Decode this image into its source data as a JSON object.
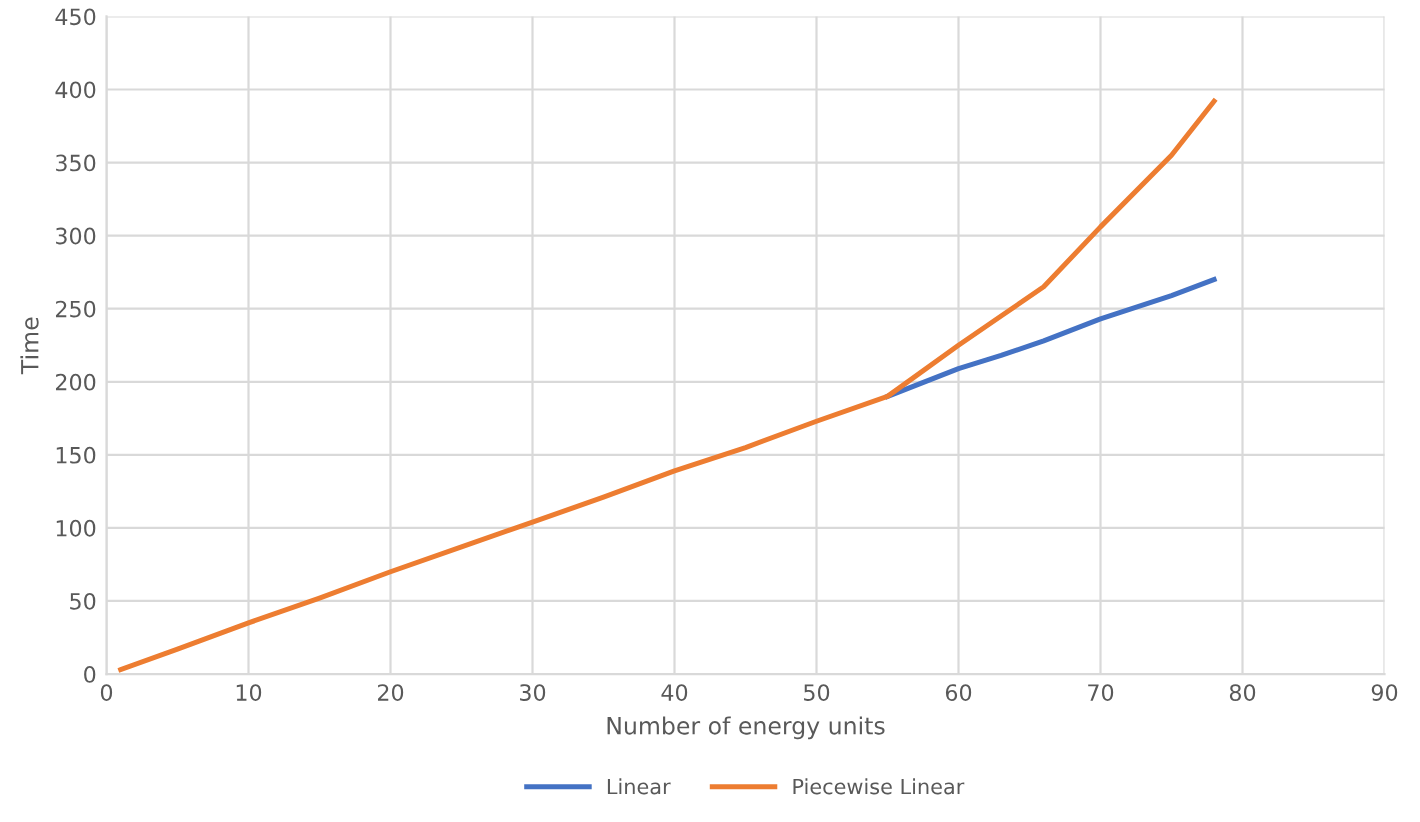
{
  "chart_data": {
    "type": "line",
    "xlabel": "Number of energy units",
    "ylabel": "Time",
    "x": [
      1,
      5,
      10,
      15,
      20,
      25,
      30,
      35,
      40,
      45,
      50,
      55,
      60,
      63,
      66,
      70,
      75,
      78
    ],
    "series": [
      {
        "name": "Linear",
        "color": "#4472c4",
        "values": [
          null,
          null,
          null,
          null,
          null,
          null,
          null,
          null,
          null,
          null,
          null,
          190,
          209,
          218,
          228,
          243,
          259,
          270
        ]
      },
      {
        "name": "Piecewise Linear",
        "color": "#ed7d31",
        "values": [
          3,
          17,
          35,
          52,
          70,
          87,
          104,
          121,
          139,
          155,
          173,
          190,
          225,
          245,
          265,
          306,
          355,
          392
        ]
      }
    ],
    "xlim": [
      0,
      90
    ],
    "xticks": [
      0,
      10,
      20,
      30,
      40,
      50,
      60,
      70,
      80,
      90
    ],
    "ylim": [
      0,
      450
    ],
    "yticks": [
      0,
      50,
      100,
      150,
      200,
      250,
      300,
      350,
      400,
      450
    ],
    "grid": true,
    "legend": "bottom",
    "marker": "none",
    "line_style": "solid"
  }
}
